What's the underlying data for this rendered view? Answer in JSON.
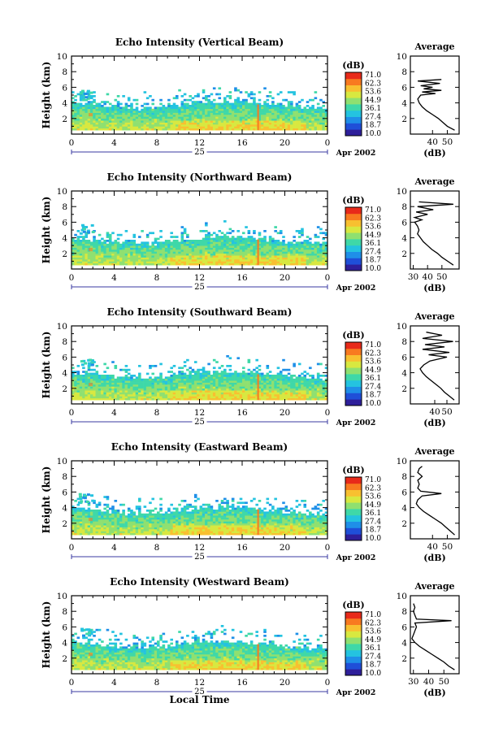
{
  "figure": {
    "time_axis_title": "Local Time",
    "date_day": "25",
    "date_month_year": "Apr 2002"
  },
  "colorbar": {
    "unit_label": "(dB)",
    "tick_labels": [
      "71.0",
      "62.3",
      "53.6",
      "44.9",
      "36.1",
      "27.4",
      "18.7",
      "10.0"
    ],
    "range": [
      10.0,
      71.0
    ],
    "colors": [
      "#2e1f9a",
      "#1f4fd8",
      "#1f8fe8",
      "#24c3e0",
      "#3fd8a8",
      "#8fe070",
      "#d8e840",
      "#f8c030",
      "#f87a20",
      "#e82a1a"
    ]
  },
  "chart_data": [
    {
      "type": "heatmap",
      "title": "Echo Intensity (Vertical Beam)",
      "ylabel": "Height (km)",
      "xlabel": "",
      "xlim": [
        0,
        24
      ],
      "ylim": [
        0,
        10
      ],
      "x_ticks": [
        "0",
        "4",
        "8",
        "12",
        "16",
        "20",
        "0"
      ],
      "y_ticks": [
        "2",
        "4",
        "6",
        "8",
        "10"
      ],
      "echo_top_km": [
        [
          0,
          3.9
        ],
        [
          2,
          3.7
        ],
        [
          4,
          3.4
        ],
        [
          6,
          3.2
        ],
        [
          8,
          3.3
        ],
        [
          10,
          3.6
        ],
        [
          12,
          3.9
        ],
        [
          14,
          4.0
        ],
        [
          16,
          3.9
        ],
        [
          18,
          3.8
        ],
        [
          20,
          3.5
        ],
        [
          22,
          3.3
        ],
        [
          24,
          3.2
        ]
      ],
      "avg_profile": {
        "title": "Average",
        "xlabel": "(dB)",
        "xlim": [
          25,
          58
        ],
        "x_ticks": [
          "40",
          "50"
        ],
        "y_ticks": [
          "2",
          "4",
          "6",
          "8",
          "10"
        ],
        "height_km": [
          0.5,
          1,
          1.5,
          2,
          2.5,
          3,
          3.5,
          4,
          4.5,
          5,
          5.2,
          5.4,
          5.6,
          5.8,
          6,
          6.2,
          6.5,
          6.8,
          7
        ],
        "db": [
          55,
          50,
          47,
          44,
          40,
          36,
          33,
          31,
          30,
          32,
          42,
          33,
          46,
          34,
          40,
          32,
          45,
          30,
          46
        ]
      }
    },
    {
      "type": "heatmap",
      "title": "Echo Intensity (Northward Beam)",
      "ylabel": "Height (km)",
      "xlabel": "",
      "xlim": [
        0,
        24
      ],
      "ylim": [
        0,
        10
      ],
      "x_ticks": [
        "0",
        "4",
        "8",
        "12",
        "16",
        "20",
        "0"
      ],
      "y_ticks": [
        "2",
        "4",
        "6",
        "8",
        "10"
      ],
      "echo_top_km": [
        [
          0,
          3.8
        ],
        [
          2,
          3.6
        ],
        [
          4,
          3.3
        ],
        [
          6,
          3.1
        ],
        [
          8,
          3.2
        ],
        [
          10,
          3.5
        ],
        [
          12,
          3.8
        ],
        [
          14,
          4.0
        ],
        [
          16,
          3.9
        ],
        [
          18,
          3.7
        ],
        [
          20,
          3.4
        ],
        [
          22,
          3.2
        ],
        [
          24,
          3.1
        ]
      ],
      "avg_profile": {
        "title": "Average",
        "xlabel": "(dB)",
        "xlim": [
          28,
          62
        ],
        "x_ticks": [
          "30",
          "40",
          "50"
        ],
        "y_ticks": [
          "2",
          "4",
          "6",
          "8",
          "10"
        ],
        "height_km": [
          0.5,
          1,
          1.5,
          2,
          2.5,
          3,
          3.5,
          4,
          4.5,
          5,
          5.5,
          6,
          6.3,
          6.6,
          7,
          7.3,
          7.6,
          8,
          8.3,
          8.6
        ],
        "db": [
          58,
          54,
          50,
          47,
          43,
          40,
          37,
          35,
          33,
          34,
          33,
          31,
          36,
          31,
          40,
          32,
          44,
          33,
          58,
          34
        ]
      }
    },
    {
      "type": "heatmap",
      "title": "Echo Intensity (Southward Beam)",
      "ylabel": "Height (km)",
      "xlabel": "",
      "xlim": [
        0,
        24
      ],
      "ylim": [
        0,
        10
      ],
      "x_ticks": [
        "0",
        "4",
        "8",
        "12",
        "16",
        "20",
        "0"
      ],
      "y_ticks": [
        "2",
        "4",
        "6",
        "8",
        "10"
      ],
      "echo_top_km": [
        [
          0,
          3.9
        ],
        [
          2,
          3.7
        ],
        [
          4,
          3.4
        ],
        [
          6,
          3.2
        ],
        [
          8,
          3.3
        ],
        [
          10,
          3.6
        ],
        [
          12,
          3.9
        ],
        [
          14,
          4.0
        ],
        [
          16,
          3.9
        ],
        [
          18,
          3.7
        ],
        [
          20,
          3.4
        ],
        [
          22,
          3.2
        ],
        [
          24,
          3.2
        ]
      ],
      "avg_profile": {
        "title": "Average",
        "xlabel": "(dB)",
        "xlim": [
          20,
          60
        ],
        "x_ticks": [
          "40",
          "50"
        ],
        "y_ticks": [
          "2",
          "4",
          "6",
          "8",
          "10"
        ],
        "height_km": [
          0.5,
          1,
          1.5,
          2,
          2.5,
          3,
          3.5,
          4,
          4.5,
          5,
          5.5,
          6,
          6.3,
          6.6,
          7,
          7.3,
          7.6,
          8,
          8.4,
          8.8,
          9.2
        ],
        "db": [
          56,
          52,
          48,
          45,
          41,
          37,
          33,
          30,
          28,
          31,
          36,
          50,
          35,
          52,
          30,
          48,
          32,
          55,
          30,
          46,
          33
        ]
      }
    },
    {
      "type": "heatmap",
      "title": "Echo Intensity (Eastward Beam)",
      "ylabel": "Height (km)",
      "xlabel": "",
      "xlim": [
        0,
        24
      ],
      "ylim": [
        0,
        10
      ],
      "x_ticks": [
        "0",
        "4",
        "8",
        "12",
        "16",
        "20",
        "0"
      ],
      "y_ticks": [
        "2",
        "4",
        "6",
        "8",
        "10"
      ],
      "echo_top_km": [
        [
          0,
          3.8
        ],
        [
          2,
          3.6
        ],
        [
          4,
          3.3
        ],
        [
          6,
          3.1
        ],
        [
          8,
          3.2
        ],
        [
          10,
          3.5
        ],
        [
          12,
          3.8
        ],
        [
          14,
          3.9
        ],
        [
          16,
          3.8
        ],
        [
          18,
          3.6
        ],
        [
          20,
          3.3
        ],
        [
          22,
          3.1
        ],
        [
          24,
          3.0
        ]
      ],
      "avg_profile": {
        "title": "Average",
        "xlabel": "(dB)",
        "xlim": [
          25,
          58
        ],
        "x_ticks": [
          "40",
          "50"
        ],
        "y_ticks": [
          "2",
          "4",
          "6",
          "8",
          "10"
        ],
        "height_km": [
          0.5,
          1,
          1.5,
          2,
          2.5,
          3,
          3.5,
          4,
          4.5,
          5,
          5.5,
          5.8,
          6.1,
          6.5,
          7,
          7.5,
          8,
          8.5,
          9,
          9.3
        ],
        "db": [
          55,
          52,
          49,
          46,
          42,
          38,
          34,
          31,
          29,
          30,
          33,
          46,
          32,
          30,
          31,
          30,
          33,
          30,
          31,
          33
        ]
      }
    },
    {
      "type": "heatmap",
      "title": "Echo Intensity (Westward Beam)",
      "ylabel": "Height (km)",
      "xlabel": "Local Time",
      "xlim": [
        0,
        24
      ],
      "ylim": [
        0,
        10
      ],
      "x_ticks": [
        "0",
        "4",
        "8",
        "12",
        "16",
        "20",
        "0"
      ],
      "y_ticks": [
        "2",
        "4",
        "6",
        "8",
        "10"
      ],
      "echo_top_km": [
        [
          0,
          3.9
        ],
        [
          2,
          3.7
        ],
        [
          4,
          3.4
        ],
        [
          6,
          3.2
        ],
        [
          8,
          3.3
        ],
        [
          10,
          3.6
        ],
        [
          12,
          3.9
        ],
        [
          14,
          4.0
        ],
        [
          16,
          3.9
        ],
        [
          18,
          3.7
        ],
        [
          20,
          3.4
        ],
        [
          22,
          3.2
        ],
        [
          24,
          3.1
        ]
      ],
      "avg_profile": {
        "title": "Average",
        "xlabel": "(dB)",
        "xlim": [
          28,
          60
        ],
        "x_ticks": [
          "30",
          "40",
          "50"
        ],
        "y_ticks": [
          "2",
          "4",
          "6",
          "8",
          "10"
        ],
        "height_km": [
          0.5,
          1,
          1.5,
          2,
          2.5,
          3,
          3.5,
          4,
          4.5,
          5,
          5.5,
          6,
          6.5,
          6.8,
          7,
          7.5,
          8,
          8.5,
          9
        ],
        "db": [
          57,
          53,
          50,
          46,
          42,
          38,
          34,
          31,
          29,
          30,
          31,
          32,
          31,
          55,
          32,
          31,
          30,
          31,
          30
        ]
      }
    }
  ]
}
